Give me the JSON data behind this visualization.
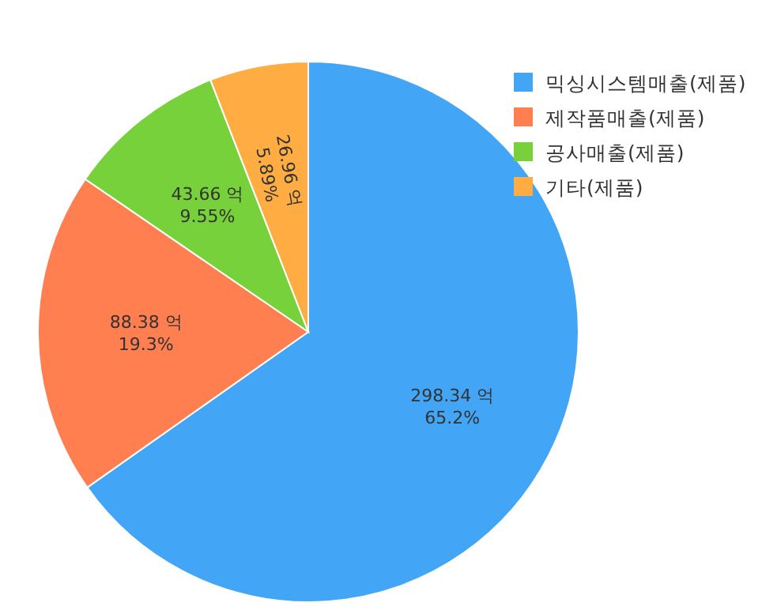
{
  "chart_data": {
    "type": "pie",
    "categories": [
      "믹싱시스템매출(제품)",
      "제작품매출(제품)",
      "공사매출(제품)",
      "기타(제품)"
    ],
    "values": [
      298.34,
      88.38,
      43.66,
      26.96
    ],
    "colors": [
      "#42a5f5",
      "#ff7f50",
      "#77d13a",
      "#ffad42"
    ],
    "value_labels": [
      "298.34 억\n65.2%",
      "88.38 억\n19.3%",
      "43.66 억\n9.55%",
      "26.96 억\n5.89%"
    ],
    "legend": "top right"
  }
}
